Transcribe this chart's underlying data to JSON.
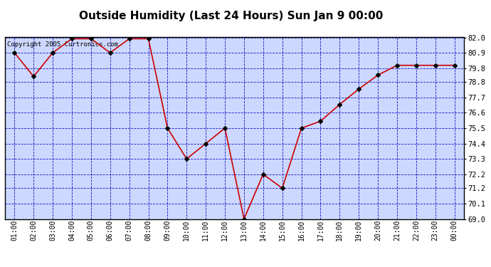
{
  "title": "Outside Humidity (Last 24 Hours) Sun Jan 9 00:00",
  "copyright_text": "Copyright 2005 Curtronics.com",
  "x_labels": [
    "01:00",
    "02:00",
    "03:00",
    "04:00",
    "05:00",
    "06:00",
    "07:00",
    "08:00",
    "09:00",
    "10:00",
    "11:00",
    "12:00",
    "13:00",
    "14:00",
    "15:00",
    "16:00",
    "17:00",
    "18:00",
    "19:00",
    "20:00",
    "21:00",
    "22:00",
    "23:00",
    "00:00"
  ],
  "x_values": [
    1,
    2,
    3,
    4,
    5,
    6,
    7,
    8,
    9,
    10,
    11,
    12,
    13,
    14,
    15,
    16,
    17,
    18,
    19,
    20,
    21,
    22,
    23,
    24
  ],
  "y_values": [
    80.9,
    79.2,
    80.9,
    81.9,
    81.9,
    80.9,
    81.9,
    81.9,
    75.5,
    73.3,
    74.4,
    75.5,
    69.0,
    72.2,
    71.2,
    75.5,
    76.0,
    77.2,
    78.3,
    79.3,
    80.0,
    80.0,
    80.0,
    80.0
  ],
  "ylim": [
    69.0,
    82.0
  ],
  "ytick_labels": [
    "69.0",
    "70.1",
    "71.2",
    "72.2",
    "73.3",
    "74.4",
    "75.5",
    "76.6",
    "77.7",
    "78.8",
    "79.8",
    "80.9",
    "82.0"
  ],
  "ytick_values": [
    69.0,
    70.1,
    71.2,
    72.2,
    73.3,
    74.4,
    75.5,
    76.6,
    77.7,
    78.8,
    79.8,
    80.9,
    82.0
  ],
  "line_color": "#cc0000",
  "marker_color": "#000000",
  "background_color": "#ffffff",
  "plot_bg_color": "#ccd8ff",
  "grid_color": "#0000bb",
  "title_fontsize": 11,
  "border_color": "#000000"
}
